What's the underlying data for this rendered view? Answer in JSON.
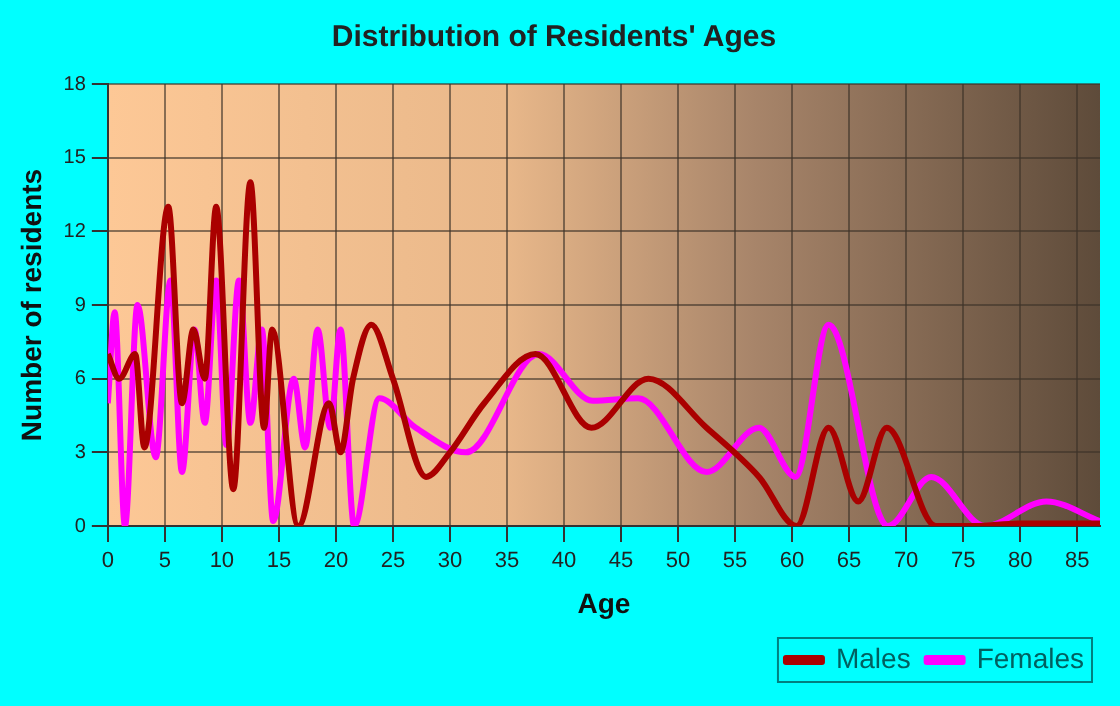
{
  "chart_data": {
    "type": "line",
    "title": "Distribution of Residents' Ages",
    "xlabel": "Age",
    "ylabel": "Number of residents",
    "series": [
      {
        "name": "Males",
        "color": "#aa0000",
        "x": [
          0,
          1,
          2.4,
          3.2,
          5.3,
          6.5,
          7.5,
          8.5,
          9.5,
          11,
          12.5,
          13.7,
          14.4,
          16.7,
          19.4,
          20.4,
          21.5,
          23.1,
          25,
          27.9,
          30,
          33,
          37.5,
          42.4,
          47.4,
          52.5,
          57.1,
          60.4,
          63.2,
          65.8,
          68.3,
          72.6,
          76,
          80,
          87
        ],
        "values": [
          7,
          6,
          7,
          3.2,
          13,
          5,
          8,
          6,
          13,
          1.5,
          14,
          4,
          8,
          0,
          5,
          3,
          6,
          8.2,
          6,
          2,
          3,
          5,
          7,
          4,
          6,
          4,
          2,
          0,
          4,
          1,
          4,
          0,
          0,
          0.1,
          0.1
        ]
      },
      {
        "name": "Females",
        "color": "#ff00ff",
        "x": [
          0,
          0.6,
          1.5,
          2.6,
          4.2,
          5.5,
          6.5,
          7.6,
          8.5,
          9.5,
          10.4,
          11.5,
          12.5,
          13.5,
          14.5,
          16.3,
          17.3,
          18.4,
          19.5,
          20.4,
          21.6,
          23.8,
          27,
          31.4,
          37.8,
          42.5,
          46.5,
          52.5,
          57.1,
          60.3,
          63.2,
          68.4,
          72.2,
          76.9,
          82.3,
          87
        ],
        "values": [
          5,
          8.7,
          0,
          9,
          2.8,
          10,
          2.2,
          8,
          4.2,
          10,
          3.3,
          10,
          4.2,
          8,
          0.2,
          6,
          3.2,
          8,
          4,
          8,
          0,
          5.2,
          4,
          3,
          7,
          5.1,
          5.2,
          2.2,
          4,
          2,
          8.2,
          0,
          2,
          0,
          1,
          0.2
        ]
      }
    ],
    "xlim": [
      0,
      87
    ],
    "xticks": [
      0,
      5,
      10,
      15,
      20,
      25,
      30,
      35,
      40,
      45,
      50,
      55,
      60,
      65,
      70,
      75,
      80,
      85
    ],
    "ylim": [
      0,
      18
    ],
    "yticks": [
      0,
      3,
      6,
      9,
      12,
      15,
      18
    ],
    "grid": true,
    "legend": "bottom right",
    "marker": "none",
    "line_style": "solid"
  }
}
